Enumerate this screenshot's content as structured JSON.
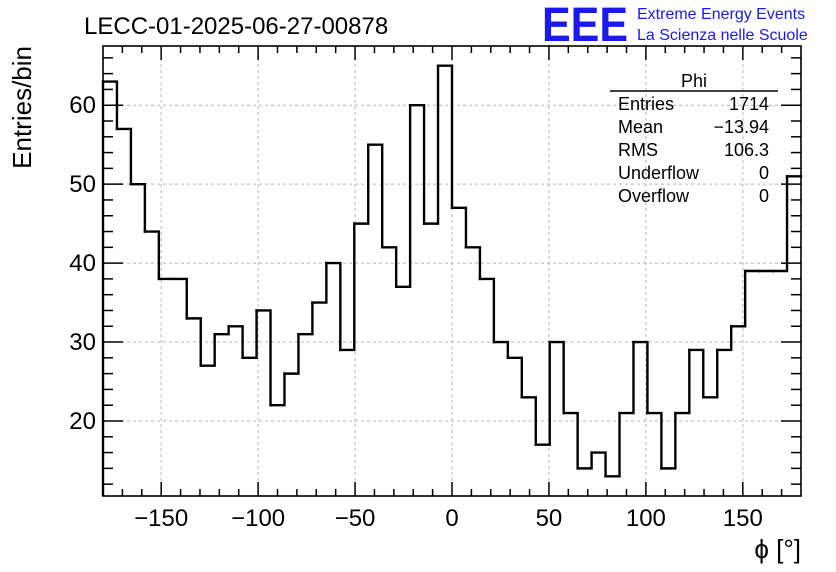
{
  "chart_data": {
    "type": "histogram",
    "title": "LECC-01-2025-06-27-00878",
    "xlabel": "ϕ [°]",
    "ylabel": "Entries/bin",
    "xlim": [
      -180,
      180
    ],
    "ylim": [
      10.5,
      67.5
    ],
    "grid": true,
    "bin_width": 7.2,
    "x_ticks": [
      -150,
      -100,
      -50,
      0,
      50,
      100,
      150
    ],
    "x_tick_labels": [
      "−150",
      "−100",
      "−50",
      "0",
      "50",
      "100",
      "150"
    ],
    "y_ticks": [
      20,
      30,
      40,
      50,
      60
    ],
    "y_tick_labels": [
      "20",
      "30",
      "40",
      "50",
      "60"
    ],
    "values": [
      63,
      57,
      50,
      44,
      38,
      38,
      33,
      27,
      31,
      32,
      28,
      34,
      22,
      26,
      31,
      35,
      40,
      29,
      45,
      55,
      42,
      37,
      60,
      45,
      65,
      47,
      42,
      38,
      30,
      28,
      23,
      17,
      30,
      21,
      14,
      16,
      13,
      21,
      30,
      21,
      14,
      21,
      29,
      23,
      29,
      32,
      39,
      39,
      39,
      51
    ],
    "line_color": "#000000",
    "stats": {
      "name": "Phi",
      "rows": [
        {
          "label": "Entries",
          "value": "1714"
        },
        {
          "label": "Mean",
          "value": "−13.94"
        },
        {
          "label": "RMS",
          "value": "106.3"
        },
        {
          "label": "Underflow",
          "value": "0"
        },
        {
          "label": "Overflow",
          "value": "0"
        }
      ]
    }
  },
  "logo": {
    "text": "EEE",
    "line1": "Extreme Energy Events",
    "line2": "La Scienza nelle Scuole",
    "color": "#1a1aee"
  }
}
